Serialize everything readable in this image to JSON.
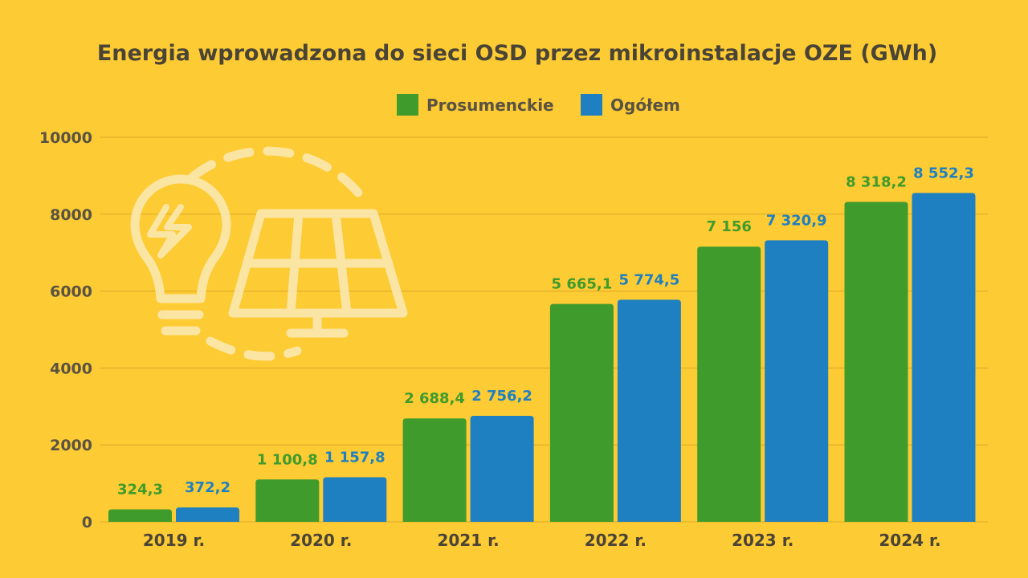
{
  "chart_data": {
    "type": "bar",
    "title": "Energia wprowadzona do sieci OSD przez mikroinstalacje OZE (GWh)",
    "categories": [
      "2019 r.",
      "2020 r.",
      "2021 r.",
      "2022 r.",
      "2023 r.",
      "2024 r."
    ],
    "series": [
      {
        "name": "Prosumenckie",
        "color": "#3E9B2C",
        "values": [
          324.3,
          1100.8,
          2688.4,
          5665.1,
          7156,
          8318.2
        ],
        "labels": [
          "324,3",
          "1 100,8",
          "2 688,4",
          "5 665,1",
          "7 156",
          "8 318,2"
        ]
      },
      {
        "name": "Ogółem",
        "color": "#1E80C0",
        "values": [
          372.2,
          1157.8,
          2756.2,
          5774.5,
          7320.9,
          8552.3
        ],
        "labels": [
          "372,2",
          "1 157,8",
          "2 756,2",
          "5 774,5",
          "7 320,9",
          "8 552,3"
        ]
      }
    ],
    "ylim": [
      0,
      10000
    ],
    "yticks": [
      "0",
      "2000",
      "4000",
      "6000",
      "8000",
      "10000"
    ],
    "grid": true,
    "legend_position": "top-center",
    "background": "#FDCB33",
    "decoration": "lightbulb-and-solar-panel-icon"
  }
}
